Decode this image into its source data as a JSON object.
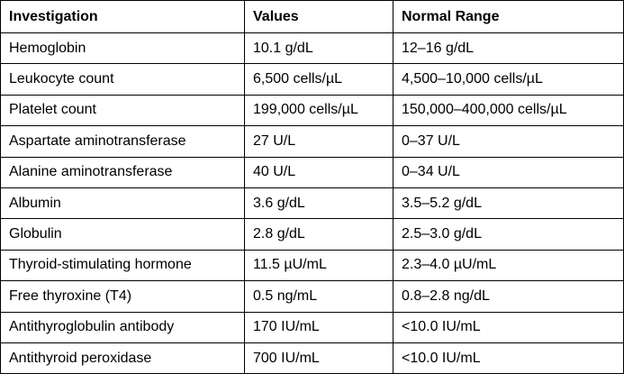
{
  "table": {
    "headers": [
      "Investigation",
      "Values",
      "Normal Range"
    ],
    "rows": [
      [
        "Hemoglobin",
        "10.1 g/dL",
        "12–16 g/dL"
      ],
      [
        "Leukocyte count",
        "6,500 cells/µL",
        "4,500–10,000 cells/µL"
      ],
      [
        "Platelet count",
        "199,000 cells/µL",
        "150,000–400,000 cells/µL"
      ],
      [
        "Aspartate aminotransferase",
        "27 U/L",
        "0–37 U/L"
      ],
      [
        "Alanine aminotransferase",
        "40 U/L",
        "0–34 U/L"
      ],
      [
        "Albumin",
        "3.6 g/dL",
        "3.5–5.2 g/dL"
      ],
      [
        "Globulin",
        "2.8 g/dL",
        "2.5–3.0 g/dL"
      ],
      [
        "Thyroid-stimulating hormone",
        "11.5 µU/mL",
        "2.3–4.0 µU/mL"
      ],
      [
        "Free thyroxine (T4)",
        "0.5 ng/mL",
        "0.8–2.8 ng/dL"
      ],
      [
        "Antithyroglobulin antibody",
        "170 IU/mL",
        "<10.0 IU/mL"
      ],
      [
        "Antithyroid peroxidase",
        "700 IU/mL",
        "<10.0 IU/mL"
      ]
    ]
  }
}
